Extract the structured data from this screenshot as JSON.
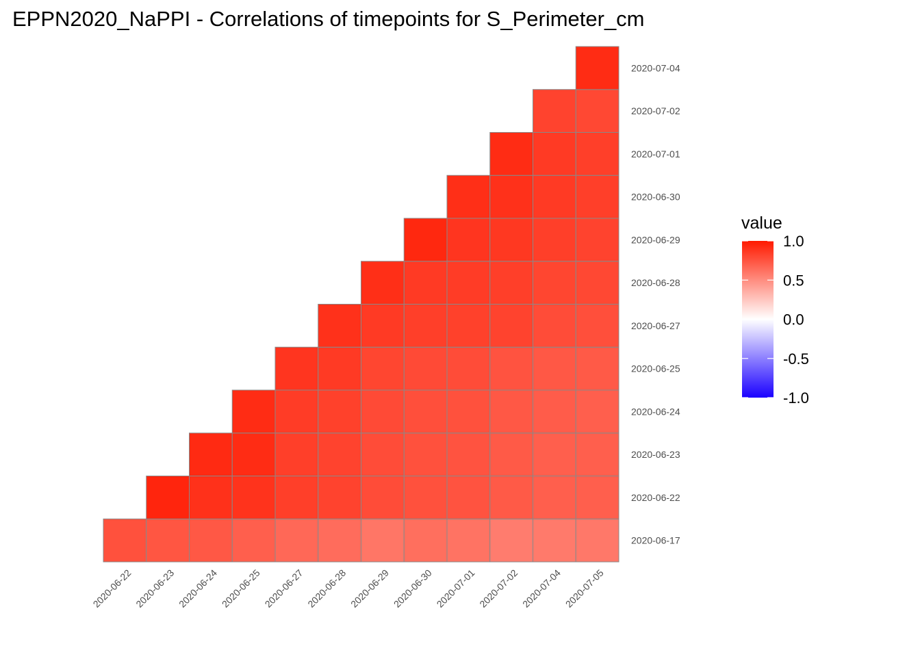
{
  "chart_data": {
    "type": "heatmap",
    "title": "EPPN2020_NaPPI - Correlations of timepoints for S_Perimeter_cm",
    "x_categories": [
      "2020-06-22",
      "2020-06-23",
      "2020-06-24",
      "2020-06-25",
      "2020-06-27",
      "2020-06-28",
      "2020-06-29",
      "2020-06-30",
      "2020-07-01",
      "2020-07-02",
      "2020-07-04",
      "2020-07-05"
    ],
    "y_categories": [
      "2020-06-17",
      "2020-06-22",
      "2020-06-23",
      "2020-06-24",
      "2020-06-25",
      "2020-06-27",
      "2020-06-28",
      "2020-06-29",
      "2020-06-30",
      "2020-07-01",
      "2020-07-02",
      "2020-07-04"
    ],
    "values": [
      [
        0.76,
        0.74,
        0.73,
        0.7,
        0.66,
        0.64,
        0.6,
        0.63,
        0.61,
        0.57,
        0.58,
        0.59
      ],
      [
        null,
        0.95,
        0.9,
        0.89,
        0.84,
        0.82,
        0.78,
        0.76,
        0.75,
        0.72,
        0.7,
        0.7
      ],
      [
        null,
        null,
        0.93,
        0.92,
        0.84,
        0.82,
        0.78,
        0.76,
        0.75,
        0.72,
        0.7,
        0.7
      ],
      [
        null,
        null,
        null,
        0.92,
        0.85,
        0.83,
        0.79,
        0.77,
        0.76,
        0.73,
        0.71,
        0.7
      ],
      [
        null,
        null,
        null,
        null,
        0.88,
        0.86,
        0.81,
        0.79,
        0.78,
        0.75,
        0.73,
        0.72
      ],
      [
        null,
        null,
        null,
        null,
        null,
        0.9,
        0.86,
        0.84,
        0.83,
        0.82,
        0.78,
        0.77
      ],
      [
        null,
        null,
        null,
        null,
        null,
        null,
        0.91,
        0.86,
        0.85,
        0.84,
        0.81,
        0.8
      ],
      [
        null,
        null,
        null,
        null,
        null,
        null,
        null,
        0.94,
        0.88,
        0.87,
        0.84,
        0.82
      ],
      [
        null,
        null,
        null,
        null,
        null,
        null,
        null,
        null,
        0.91,
        0.9,
        0.86,
        0.84
      ],
      [
        null,
        null,
        null,
        null,
        null,
        null,
        null,
        null,
        null,
        0.92,
        0.86,
        0.84
      ],
      [
        null,
        null,
        null,
        null,
        null,
        null,
        null,
        null,
        null,
        null,
        0.82,
        0.8
      ],
      [
        null,
        null,
        null,
        null,
        null,
        null,
        null,
        null,
        null,
        null,
        null,
        0.92
      ]
    ],
    "value_range": [
      -1,
      1
    ],
    "color_low": "#1a00ff",
    "color_mid": "#ffffff",
    "color_high": "#ff1a00",
    "tile_border_color": "#888888",
    "legend": {
      "title": "value",
      "ticks": [
        1.0,
        0.5,
        0.0,
        -0.5,
        -1.0
      ],
      "tick_labels": [
        "1.0",
        "0.5",
        "0.0",
        "-0.5",
        "-1.0"
      ],
      "position": "right"
    },
    "grid": false,
    "y_axis_side": "right",
    "x_tick_rotation": -45
  }
}
